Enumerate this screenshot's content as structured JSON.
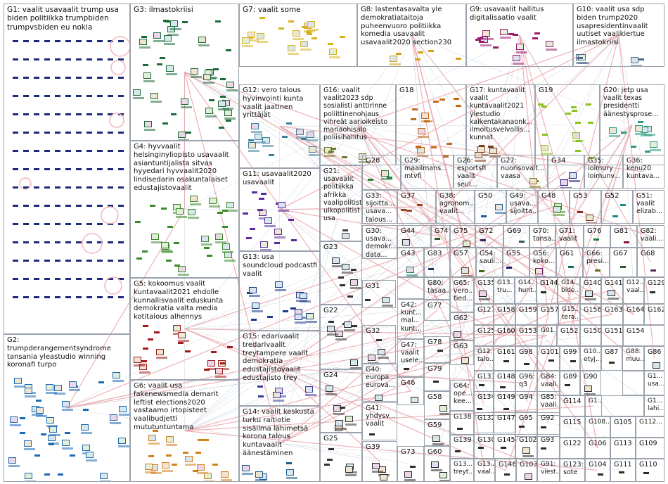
{
  "canvas": {
    "background": "#ffffff",
    "border_color": "#9aa3ad",
    "edge_color": "#e9a0a6"
  },
  "groups": [
    {
      "id": "G1",
      "label": "G1: vaalit usavaalit trump usa\nbiden politiikka trumpbiden\ntrumpvsbiden eu nokia",
      "color": "#1b2a7a",
      "kind": "grid"
    },
    {
      "id": "G3",
      "label": "G3: ilmastokriisi",
      "color": "#1d6b3a",
      "kind": "cluster"
    },
    {
      "id": "G7",
      "label": "G7: vaalit some",
      "color": "#d8b21e",
      "kind": "cluster"
    },
    {
      "id": "G8",
      "label": "G8: lastentasavalta yle\ndemokratiataitoja\npuheenvuoro politiikka\nkomedia usavaalit\nusavaalit2020 section230",
      "color": "#d4a11a",
      "kind": "cluster"
    },
    {
      "id": "G9",
      "label": "G9: usavaalit hallitus\ndigitalisaatio vaalit",
      "color": "#9b1b6b",
      "kind": "cluster"
    },
    {
      "id": "G10",
      "label": "G10: vaalit usa sdp\nbiden trump2020\nusapresidentinvaalit\nuutiset vaalikiertue\nilmastokriisi",
      "color": "#4c6b8a",
      "kind": "cluster"
    },
    {
      "id": "G12",
      "label": "G12: vero talous\nhyvinvointi kunta\nvaalit jaatinen\nyrittäjät",
      "color": "#3a7f9e",
      "kind": "cluster"
    },
    {
      "id": "G16",
      "label": "G16: vaalit\nvaalit2023 sdp\nsosialisti anttirinne\npoliittinenohjaus\nvihreät aarioikeisto\nmariaohisalo\npoliisihallitus",
      "color": "#6b7c2a",
      "kind": "cluster"
    },
    {
      "id": "G18",
      "label": "G18",
      "color": "#c46a1a",
      "kind": "cluster"
    },
    {
      "id": "G17",
      "label": "G17: kuntavaalit\nvaalit\nkuntavaalit2021\nylestudio\nkaikentakanaonk...\nilmoitusvelvollis...\nkunnat",
      "color": "#7a3a1a",
      "kind": "cluster"
    },
    {
      "id": "G19",
      "label": "G19",
      "color": "#8ac41a",
      "kind": "cluster"
    },
    {
      "id": "G20",
      "label": "G20: jetp usa\nvaalit texas\npresidentti\näänestysprose...",
      "color": "#2a9a7a",
      "kind": "cluster"
    },
    {
      "id": "G4",
      "label": "G4: hyvvaalit\nhelsinginyliopisto usavaalit\nasiantuntijalista sitvas\nhyyedari hyvvaalit2020\nlindisedarin osakuntalaiset\nedustajistovaalit",
      "color": "#3a8a2a",
      "kind": "cluster"
    },
    {
      "id": "G11",
      "label": "G11: usavaalit2020\nusavaalit",
      "color": "#5a2a9e",
      "kind": "cluster"
    },
    {
      "id": "G21",
      "label": "G21:\nusavaalit\npolitiikka\nafrikka\nvaalipolitist\nulkopolitist\nusa",
      "color": "#444444",
      "kind": "cluster"
    },
    {
      "id": "G28",
      "label": "G28",
      "color": "#2a7a3a",
      "kind": "cluster"
    },
    {
      "id": "G29",
      "label": "G29:\nmaailmans...\nmtvfi",
      "color": "#c41a1a",
      "kind": "cluster"
    },
    {
      "id": "G26",
      "label": "G26:\nesportsfi\nvaalit seul...",
      "color": "#1a6ac4",
      "kind": "cluster"
    },
    {
      "id": "G27",
      "label": "G27: nuorisovalt...\nvaasa",
      "color": "#7a7a1a",
      "kind": "cluster"
    },
    {
      "id": "G34",
      "label": "G34",
      "color": "#1a1a7a",
      "kind": "cluster"
    },
    {
      "id": "G35",
      "label": "G35:\nloimury\nloimunv...",
      "color": "#2a5a9e",
      "kind": "cluster"
    },
    {
      "id": "G36",
      "label": "G36:\nkenu20\nkuntava...",
      "color": "#3a7a5a",
      "kind": "cluster"
    },
    {
      "id": "G33",
      "label": "G33:\nsijoitta...\nusava...\ntalous...",
      "color": "#555555",
      "kind": "cluster"
    },
    {
      "id": "G37",
      "label": "G37",
      "color": "#9a4a1a",
      "kind": "cluster"
    },
    {
      "id": "G38",
      "label": "G38:\nagronom...\nvaalit...",
      "color": "#3a3a3a",
      "kind": "cluster"
    },
    {
      "id": "G50",
      "label": "G50",
      "color": "#1a5a9e",
      "kind": "cluster"
    },
    {
      "id": "G49",
      "label": "G49:\nusava...\nsijoitta...",
      "color": "#8a1a5a",
      "kind": "cluster"
    },
    {
      "id": "G48",
      "label": "G48",
      "color": "#4a8a1a",
      "kind": "cluster"
    },
    {
      "id": "G53",
      "label": "G53",
      "color": "#8a2a1a",
      "kind": "cluster"
    },
    {
      "id": "G52",
      "label": "G52",
      "color": "#1a8a8a",
      "kind": "cluster"
    },
    {
      "id": "G51",
      "label": "G51:\nvaalit\nelizab...",
      "color": "#5a1a8a",
      "kind": "cluster"
    },
    {
      "id": "G5",
      "label": "G5: kokoomus vaalit\nkuntavaalit2021 ehdolle\nkunnallisvaalit eduskunta\ndemokratia valta media\nkotitalous alhennys",
      "color": "#a01a1a",
      "kind": "cluster"
    },
    {
      "id": "G13",
      "label": "G13: usa\nsoundcloud podcastfi\nvaalit",
      "color": "#1a3a8a",
      "kind": "cluster"
    },
    {
      "id": "G23",
      "label": "G23",
      "color": "#333333",
      "kind": "cluster"
    },
    {
      "id": "G30",
      "label": "G30:\nusava...\ndemokr...\ndata...",
      "color": "#333333",
      "kind": "cluster"
    },
    {
      "id": "G44",
      "label": "G44",
      "color": "#2a2a2a",
      "kind": "cluster"
    },
    {
      "id": "G74",
      "label": "G74",
      "color": "#2a5a2a",
      "kind": "cluster"
    },
    {
      "id": "G75",
      "label": "G75",
      "color": "#5a2a2a",
      "kind": "cluster"
    },
    {
      "id": "G72",
      "label": "G72",
      "color": "#2a2a5a",
      "kind": "cluster"
    },
    {
      "id": "G69",
      "label": "G69",
      "color": "#2a5a5a",
      "kind": "cluster"
    },
    {
      "id": "G70",
      "label": "G70:\ntansa...",
      "color": "#5a5a2a",
      "kind": "cluster"
    },
    {
      "id": "G71",
      "label": "G71:\nvaalit",
      "color": "#2a2a2a",
      "kind": "cluster"
    },
    {
      "id": "G76",
      "label": "G76",
      "color": "#1a7a3a",
      "kind": "cluster"
    },
    {
      "id": "G81",
      "label": "G81",
      "color": "#7a1a3a",
      "kind": "cluster"
    },
    {
      "id": "G82",
      "label": "G82:\nvaali...",
      "color": "#3a3a7a",
      "kind": "cluster"
    },
    {
      "id": "G31",
      "label": "G31",
      "color": "#333333",
      "kind": "cluster"
    },
    {
      "id": "G43",
      "label": "G43",
      "color": "#1a7a6a",
      "kind": "cluster"
    },
    {
      "id": "G83",
      "label": "G83",
      "color": "#1a3a6a",
      "kind": "cluster"
    },
    {
      "id": "G57",
      "label": "G57",
      "color": "#6a3a1a",
      "kind": "cluster"
    },
    {
      "id": "G54",
      "label": "G54:\nsauli...",
      "color": "#3a6a1a",
      "kind": "cluster"
    },
    {
      "id": "G55",
      "label": "G55",
      "color": "#1a1a6a",
      "kind": "cluster"
    },
    {
      "id": "G56",
      "label": "G56:\nkoko...",
      "color": "#6a1a6a",
      "kind": "cluster"
    },
    {
      "id": "G61",
      "label": "G61",
      "color": "#1a6a6a",
      "kind": "cluster"
    },
    {
      "id": "G66",
      "label": "G66:\npresi...",
      "color": "#6a6a1a",
      "kind": "cluster"
    },
    {
      "id": "G67",
      "label": "G67",
      "color": "#2a5a2a",
      "kind": "cluster"
    },
    {
      "id": "G68",
      "label": "G68",
      "color": "#5a2a5a",
      "kind": "cluster"
    },
    {
      "id": "G80",
      "label": "G80:\ntasaa...",
      "color": "#2a2a2a",
      "kind": "cluster"
    },
    {
      "id": "G65",
      "label": "G65:\nvero...\ntied...",
      "color": "#2a2a6a",
      "kind": "cluster"
    },
    {
      "id": "G135",
      "label": "G135",
      "color": "#2a2a2a",
      "kind": "cluster"
    },
    {
      "id": "G13x",
      "label": "G13...\ntru...",
      "color": "#2a2a2a",
      "kind": "cluster"
    },
    {
      "id": "G14x",
      "label": "G14...\nhunt...",
      "color": "#2a2a2a",
      "kind": "cluster"
    },
    {
      "id": "G144",
      "label": "G144",
      "color": "#2a2a2a",
      "kind": "cluster"
    },
    {
      "id": "G14y",
      "label": "G14...\nbide...",
      "color": "#2a2a2a",
      "kind": "cluster"
    },
    {
      "id": "G140",
      "label": "G140",
      "color": "#2a2a2a",
      "kind": "cluster"
    },
    {
      "id": "G141",
      "label": "G141",
      "color": "#2a2a2a",
      "kind": "cluster"
    },
    {
      "id": "G12x",
      "label": "G12...\nvaal...",
      "color": "#2a2a2a",
      "kind": "cluster"
    },
    {
      "id": "G129",
      "label": "G129",
      "color": "#2a2a2a",
      "kind": "cluster"
    },
    {
      "id": "G22",
      "label": "G22",
      "color": "#333333",
      "kind": "cluster"
    },
    {
      "id": "G42",
      "label": "G42:\nkunt...\nmal...\nkunt...",
      "color": "#2a2a2a",
      "kind": "cluster"
    },
    {
      "id": "G77",
      "label": "G77",
      "color": "#2a2a2a",
      "kind": "cluster"
    },
    {
      "id": "G62",
      "label": "G62",
      "color": "#2a2a2a",
      "kind": "cluster"
    },
    {
      "id": "G127",
      "label": "G127",
      "color": "#2a2a2a",
      "kind": "cluster"
    },
    {
      "id": "G158",
      "label": "G158",
      "color": "#2a2a2a",
      "kind": "cluster"
    },
    {
      "id": "G159",
      "label": "G159",
      "color": "#2a2a2a",
      "kind": "cluster"
    },
    {
      "id": "G157",
      "label": "G157",
      "color": "#2a2a2a",
      "kind": "cluster"
    },
    {
      "id": "G15x",
      "label": "G15...\ntera...",
      "color": "#2a2a2a",
      "kind": "cluster"
    },
    {
      "id": "G156",
      "label": "G156",
      "color": "#2a2a2a",
      "kind": "cluster"
    },
    {
      "id": "G163",
      "label": "G163",
      "color": "#2a2a2a",
      "kind": "cluster"
    },
    {
      "id": "G164",
      "label": "G164",
      "color": "#2a2a2a",
      "kind": "cluster"
    },
    {
      "id": "G162",
      "label": "G162",
      "color": "#2a2a2a",
      "kind": "cluster"
    },
    {
      "id": "G2",
      "label": "G2:\ntrumpderangementsyndrome\ntansania yleastudio winning\nkoronafi turpo",
      "color": "#1a6ab4",
      "kind": "cluster"
    },
    {
      "id": "G32",
      "label": "G32",
      "color": "#333333",
      "kind": "cluster"
    },
    {
      "id": "G78",
      "label": "G78",
      "color": "#2a2a2a",
      "kind": "cluster"
    },
    {
      "id": "G125",
      "label": "G125",
      "color": "#2a2a2a",
      "kind": "cluster"
    },
    {
      "id": "G160",
      "label": "G160",
      "color": "#2a2a2a",
      "kind": "cluster"
    },
    {
      "id": "G153",
      "label": "G153",
      "color": "#2a2a2a",
      "kind": "cluster"
    },
    {
      "id": "G01",
      "label": "G01...",
      "color": "#2a2a2a",
      "kind": "cluster"
    },
    {
      "id": "G152",
      "label": "G152",
      "color": "#2a2a2a",
      "kind": "cluster"
    },
    {
      "id": "G150",
      "label": "G150",
      "color": "#2a2a2a",
      "kind": "cluster"
    },
    {
      "id": "G151",
      "label": "G151",
      "color": "#2a2a2a",
      "kind": "cluster"
    },
    {
      "id": "G154",
      "label": "G154",
      "color": "#2a2a2a",
      "kind": "cluster"
    },
    {
      "id": "G15",
      "label": "G15: edarivaalit\ntredarivaalit\ntreytampere vaalit\ndemokratia\nedustajistovaalit\nedustajisto trey",
      "color": "#3a3a9a",
      "kind": "cluster"
    },
    {
      "id": "G47",
      "label": "G47:\nvaalit\nusele...",
      "color": "#2a2a2a",
      "kind": "cluster"
    },
    {
      "id": "G63",
      "label": "G63",
      "color": "#2a2a2a",
      "kind": "cluster"
    },
    {
      "id": "G12y",
      "label": "G12...\ntalo...",
      "color": "#2a2a2a",
      "kind": "cluster"
    },
    {
      "id": "G161",
      "label": "G161",
      "color": "#2a2a2a",
      "kind": "cluster"
    },
    {
      "id": "G98",
      "label": "G98",
      "color": "#2a2a2a",
      "kind": "cluster"
    },
    {
      "id": "G101",
      "label": "G101",
      "color": "#2a2a2a",
      "kind": "cluster"
    },
    {
      "id": "G99",
      "label": "G99",
      "color": "#2a2a2a",
      "kind": "cluster"
    },
    {
      "id": "G10x",
      "label": "G10...\netyj...",
      "color": "#2a2a2a",
      "kind": "cluster"
    },
    {
      "id": "G87",
      "label": "G87",
      "color": "#2a2a2a",
      "kind": "cluster"
    },
    {
      "id": "G88",
      "label": "G88:\nmuu...",
      "color": "#2a2a2a",
      "kind": "cluster"
    },
    {
      "id": "G86",
      "label": "G86",
      "color": "#2a2a2a",
      "kind": "cluster"
    },
    {
      "id": "G6",
      "label": "G6: vaalit usa\nfakenewsmedia demarit\nleftist elections2020\nvastaamo irtopisteet\nvaalibudjetti mututuntuntama",
      "color": "#d4801a",
      "kind": "cluster"
    },
    {
      "id": "G24",
      "label": "G24",
      "color": "#333333",
      "kind": "cluster"
    },
    {
      "id": "G40",
      "label": "G40:\neuropa...\neurova...",
      "color": "#2a2a2a",
      "kind": "cluster"
    },
    {
      "id": "G46",
      "label": "G46",
      "color": "#2a2a2a",
      "kind": "cluster"
    },
    {
      "id": "G79",
      "label": "G79",
      "color": "#2a2a2a",
      "kind": "cluster"
    },
    {
      "id": "G64",
      "label": "G64:\nope...\nkee...",
      "color": "#2a2a2a",
      "kind": "cluster"
    },
    {
      "id": "G133",
      "label": "G133",
      "color": "#2a2a2a",
      "kind": "cluster"
    },
    {
      "id": "G148",
      "label": "G148",
      "color": "#2a2a2a",
      "kind": "cluster"
    },
    {
      "id": "G96",
      "label": "G96:\nq3",
      "color": "#2a2a2a",
      "kind": "cluster"
    },
    {
      "id": "G84",
      "label": "G84:\nvaali...",
      "color": "#2a2a2a",
      "kind": "cluster"
    },
    {
      "id": "G89",
      "label": "G89",
      "color": "#2a2a2a",
      "kind": "cluster"
    },
    {
      "id": "G90",
      "label": "G90",
      "color": "#2a2a2a",
      "kind": "cluster"
    },
    {
      "id": "G1x",
      "label": "G1...\nusa...",
      "color": "#2a2a2a",
      "kind": "cluster"
    },
    {
      "id": "G58",
      "label": "G58",
      "color": "#2a2a2a",
      "kind": "cluster"
    },
    {
      "id": "G134",
      "label": "G134",
      "color": "#2a2a2a",
      "kind": "cluster"
    },
    {
      "id": "G149",
      "label": "G149",
      "color": "#2a2a2a",
      "kind": "cluster"
    },
    {
      "id": "G94",
      "label": "G94",
      "color": "#2a2a2a",
      "kind": "cluster"
    },
    {
      "id": "G85",
      "label": "G85:\nvaali...",
      "color": "#2a2a2a",
      "kind": "cluster"
    },
    {
      "id": "G114",
      "label": "G114",
      "color": "#2a2a2a",
      "kind": "cluster"
    },
    {
      "id": "G1y",
      "label": "G1...",
      "color": "#2a2a2a",
      "kind": "cluster"
    },
    {
      "id": "G1z",
      "label": "G1...\nlahi...",
      "color": "#2a2a2a",
      "kind": "cluster"
    },
    {
      "id": "G14",
      "label": "G14: vaalit keskusta\nturku raitiotie\nsisäilma lähimetsä\nkorona talous\nkuntavaalit\näänestäminen",
      "color": "#1a5a8a",
      "kind": "cluster"
    },
    {
      "id": "G25",
      "label": "G25",
      "color": "#333333",
      "kind": "cluster"
    },
    {
      "id": "G41",
      "label": "G41:\nyhdysv...\nvaalit",
      "color": "#2a2a2a",
      "kind": "cluster"
    },
    {
      "id": "G59",
      "label": "G59",
      "color": "#2a2a2a",
      "kind": "cluster"
    },
    {
      "id": "G138",
      "label": "G138",
      "color": "#2a2a2a",
      "kind": "cluster"
    },
    {
      "id": "G132",
      "label": "G132",
      "color": "#2a2a2a",
      "kind": "cluster"
    },
    {
      "id": "G147",
      "label": "G147",
      "color": "#2a2a2a",
      "kind": "cluster"
    },
    {
      "id": "G95",
      "label": "G95",
      "color": "#2a2a2a",
      "kind": "cluster"
    },
    {
      "id": "G92",
      "label": "G92",
      "color": "#2a2a2a",
      "kind": "cluster"
    },
    {
      "id": "G115",
      "label": "G115",
      "color": "#2a2a2a",
      "kind": "cluster"
    },
    {
      "id": "G108",
      "label": "G108...",
      "color": "#2a2a2a",
      "kind": "cluster"
    },
    {
      "id": "G105",
      "label": "G105",
      "color": "#2a2a2a",
      "kind": "cluster"
    },
    {
      "id": "G112",
      "label": "G112...",
      "color": "#2a2a2a",
      "kind": "cluster"
    },
    {
      "id": "G39",
      "label": "G39",
      "color": "#2a2a2a",
      "kind": "cluster"
    },
    {
      "id": "G73",
      "label": "G73",
      "color": "#2a2a2a",
      "kind": "cluster"
    },
    {
      "id": "G60",
      "label": "G60",
      "color": "#2a2a2a",
      "kind": "cluster"
    },
    {
      "id": "G139",
      "label": "G139",
      "color": "#2a2a2a",
      "kind": "cluster"
    },
    {
      "id": "G130",
      "label": "G130",
      "color": "#2a2a2a",
      "kind": "cluster"
    },
    {
      "id": "G145",
      "label": "G145",
      "color": "#2a2a2a",
      "kind": "cluster"
    },
    {
      "id": "G102",
      "label": "G102",
      "color": "#2a2a2a",
      "kind": "cluster"
    },
    {
      "id": "G93",
      "label": "G93",
      "color": "#2a2a2a",
      "kind": "cluster"
    },
    {
      "id": "G122",
      "label": "G122",
      "color": "#2a2a2a",
      "kind": "cluster"
    },
    {
      "id": "G106",
      "label": "G106",
      "color": "#2a2a2a",
      "kind": "cluster"
    },
    {
      "id": "G113",
      "label": "G113",
      "color": "#2a2a2a",
      "kind": "cluster"
    },
    {
      "id": "G109",
      "label": "G109",
      "color": "#2a2a2a",
      "kind": "cluster"
    },
    {
      "id": "G13y",
      "label": "G13...\ntreyt...",
      "color": "#2a2a2a",
      "kind": "cluster"
    },
    {
      "id": "G13z",
      "label": "G13...\nvaal...",
      "color": "#2a2a2a",
      "kind": "cluster"
    },
    {
      "id": "G146",
      "label": "G146",
      "color": "#2a2a2a",
      "kind": "cluster"
    },
    {
      "id": "G103",
      "label": "G103",
      "color": "#2a2a2a",
      "kind": "cluster"
    },
    {
      "id": "G91",
      "label": "G91:\nviest...",
      "color": "#2a2a2a",
      "kind": "cluster"
    },
    {
      "id": "G123",
      "label": "G123:\nsote",
      "color": "#2a2a2a",
      "kind": "cluster"
    },
    {
      "id": "G104",
      "label": "G104",
      "color": "#2a2a2a",
      "kind": "cluster"
    },
    {
      "id": "G111",
      "label": "G111",
      "color": "#2a2a2a",
      "kind": "cluster"
    },
    {
      "id": "G110",
      "label": "G110",
      "color": "#2a2a2a",
      "kind": "cluster"
    }
  ]
}
